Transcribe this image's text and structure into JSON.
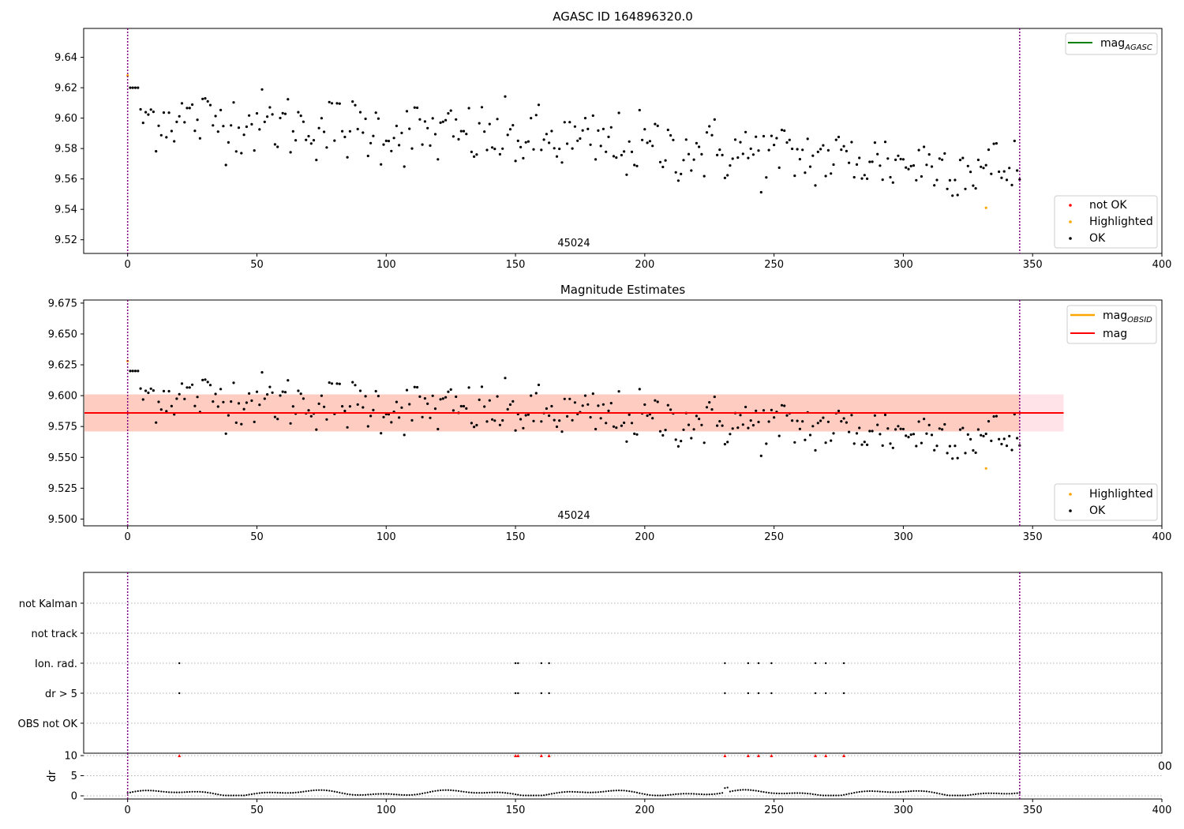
{
  "figure": {
    "title": "AGASC ID 164896320.0"
  },
  "panel1": {
    "annotation": "45024",
    "xlim": [
      -17,
      400
    ],
    "ylim": [
      9.511,
      9.659
    ],
    "xticks": [
      "0",
      "50",
      "100",
      "150",
      "200",
      "250",
      "300",
      "350",
      "400"
    ],
    "yticks": [
      "9.52",
      "9.54",
      "9.56",
      "9.58",
      "9.60",
      "9.62",
      "9.64"
    ],
    "legend_top": {
      "label_main": "mag",
      "label_sub": "AGASC"
    },
    "legend_bottom": [
      "not OK",
      "Highlighted",
      "OK"
    ],
    "colors": {
      "line": "#008000",
      "not_ok": "#ff0000",
      "highlighted": "#ffa500",
      "ok": "#000000",
      "vline": "#800080"
    }
  },
  "panel2": {
    "title": "Magnitude Estimates",
    "annotation": "45024",
    "xlim": [
      -17,
      400
    ],
    "ylim": [
      9.4945,
      9.6775
    ],
    "xticks": [
      "0",
      "50",
      "100",
      "150",
      "200",
      "250",
      "300",
      "350",
      "400"
    ],
    "yticks": [
      "9.500",
      "9.525",
      "9.550",
      "9.575",
      "9.600",
      "9.625",
      "9.650",
      "9.675"
    ],
    "legend_top": [
      {
        "label_main": "mag",
        "label_sub": "OBSID",
        "color": "#ffa500"
      },
      {
        "label_main": "mag",
        "label_sub": "",
        "color": "#ff0000"
      }
    ],
    "legend_bottom": [
      "Highlighted",
      "OK"
    ],
    "mag_obsid": 9.586,
    "mag": 9.586,
    "band_inner": [
      9.571,
      9.601
    ],
    "band_outer": [
      9.571,
      9.601
    ],
    "band_x": [
      -17,
      362
    ]
  },
  "panel3": {
    "xlim": [
      -17,
      400
    ],
    "categories": [
      "not Kalman",
      "not track",
      "Ion. rad.",
      "dr > 5",
      "OBS not OK"
    ],
    "flag_x": [
      20,
      150,
      151,
      160,
      163,
      231,
      240,
      244,
      249,
      266,
      270,
      277
    ]
  },
  "panel4": {
    "xlim": [
      -17,
      400
    ],
    "ylabel": "dr",
    "yticks": [
      "0",
      "5",
      "10"
    ],
    "xticks": [
      "0",
      "50",
      "100",
      "150",
      "200",
      "250",
      "300",
      "350",
      "400"
    ],
    "clipped_tick": "00",
    "outlier_x": [
      20,
      150,
      151,
      160,
      163,
      231,
      240,
      244,
      249,
      266,
      270,
      277
    ]
  },
  "obs_range": [
    0,
    345
  ],
  "chart_data": [
    {
      "type": "scatter",
      "title": "AGASC ID 164896320.0",
      "xlabel": "",
      "ylabel": "",
      "xlim": [
        -17,
        400
      ],
      "ylim": [
        9.511,
        9.659
      ],
      "series": [
        {
          "name": "mag_AGASC",
          "kind": "line",
          "value": "not visible"
        },
        {
          "name": "not OK",
          "points": []
        },
        {
          "name": "Highlighted",
          "x": [
            0,
            332
          ],
          "y": [
            9.628,
            9.541
          ]
        },
        {
          "name": "OK",
          "x_range": [
            1,
            345
          ],
          "n_points": 345,
          "y_trend_start": 9.602,
          "y_trend_end": 9.566,
          "y_min": 9.549,
          "y_max": 9.625
        }
      ],
      "vertical_lines_x": [
        0,
        345
      ],
      "annotation": "45024"
    },
    {
      "type": "scatter",
      "title": "Magnitude Estimates",
      "xlim": [
        -17,
        400
      ],
      "ylim": [
        9.4945,
        9.6775
      ],
      "series": [
        {
          "name": "mag_OBSID",
          "kind": "line",
          "y": 9.586,
          "x_range": [
            -17,
            362
          ]
        },
        {
          "name": "mag",
          "kind": "line",
          "y": 9.586,
          "x_range": [
            -17,
            362
          ],
          "band": [
            9.571,
            9.601
          ]
        },
        {
          "name": "Highlighted",
          "x": [
            0,
            332
          ],
          "y": [
            9.628,
            9.541
          ]
        },
        {
          "name": "OK",
          "x_range": [
            1,
            345
          ],
          "n_points": 345
        }
      ],
      "annotation": "45024"
    },
    {
      "type": "scatter",
      "categories": [
        "not Kalman",
        "not track",
        "Ion. rad.",
        "dr > 5",
        "OBS not OK"
      ],
      "flags": {
        "Ion. rad.": [
          20,
          150,
          151,
          160,
          163,
          231,
          240,
          244,
          249,
          266,
          270,
          277
        ],
        "dr > 5": [
          20,
          150,
          151,
          160,
          163,
          231,
          240,
          244,
          249,
          266,
          270,
          277
        ]
      }
    },
    {
      "type": "line",
      "ylabel": "dr",
      "ylim": [
        0,
        10
      ],
      "x_range": [
        0,
        345
      ],
      "typical_dr": [
        0.2,
        2.0
      ],
      "outliers_at_top_x": [
        20,
        150,
        151,
        160,
        163,
        231,
        240,
        244,
        249,
        266,
        270,
        277
      ]
    }
  ]
}
